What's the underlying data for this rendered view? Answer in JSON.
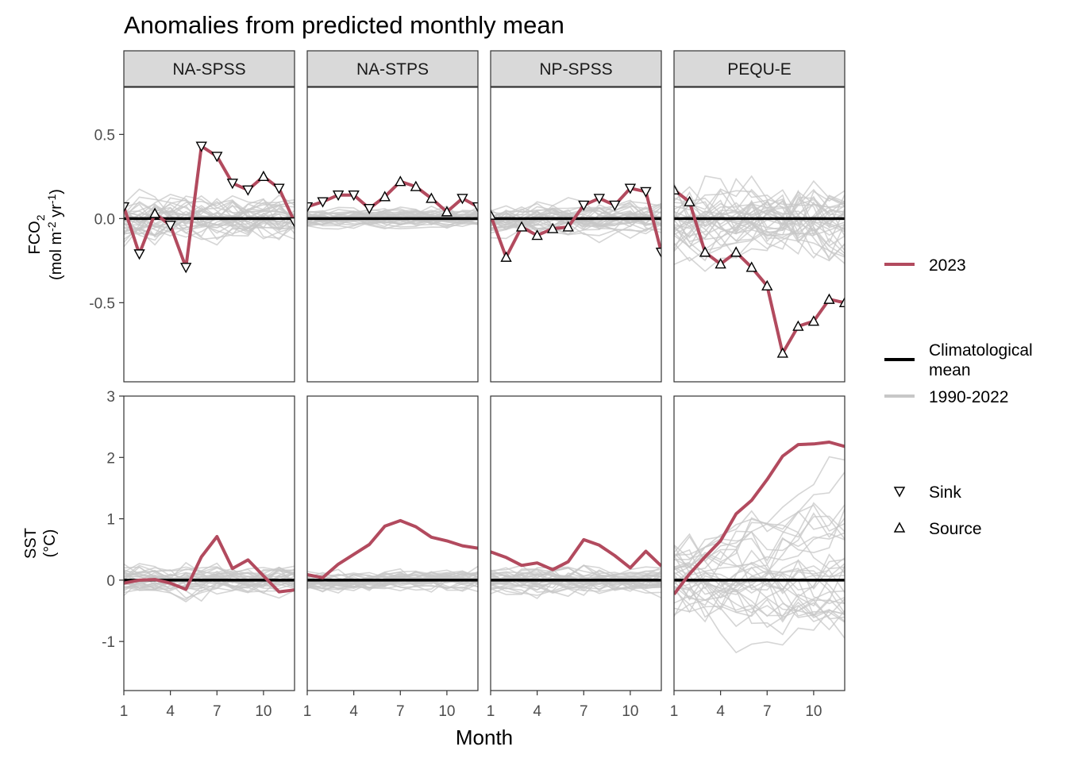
{
  "chart_data": {
    "type": "line",
    "title": "Anomalies from predicted monthly mean",
    "xlabel": "Month",
    "x": [
      1,
      2,
      3,
      4,
      5,
      6,
      7,
      8,
      9,
      10,
      11,
      12
    ],
    "x_ticks": [
      1,
      4,
      7,
      10
    ],
    "x_tick_labels": [
      "1",
      "4",
      "7",
      "10"
    ],
    "panels": [
      "NA-SPSS",
      "NA-STPS",
      "NP-SPSS",
      "PEQU-E"
    ],
    "rows": [
      {
        "key": "fco2",
        "ylabel_line1": "FCO",
        "ylabel_sub": "2",
        "ylabel_line2_a": "(mol m",
        "ylabel_line2_sup1": "-2",
        "ylabel_line2_b": " yr",
        "ylabel_line2_sup2": "-1",
        "ylabel_line2_c": ")",
        "ylim": [
          -0.97,
          0.78
        ],
        "y_ticks": [
          0.5,
          0.0,
          -0.5
        ],
        "y_tick_labels": [
          "0.5",
          "0.0",
          "-0.5"
        ],
        "series_2023": [
          [
            0.07,
            -0.21,
            0.03,
            -0.04,
            -0.29,
            0.43,
            0.37,
            0.21,
            0.17,
            0.25,
            0.18,
            -0.02
          ],
          [
            0.07,
            0.1,
            0.14,
            0.14,
            0.06,
            0.13,
            0.22,
            0.19,
            0.12,
            0.04,
            0.12,
            0.07
          ],
          [
            0.02,
            -0.23,
            -0.05,
            -0.1,
            -0.06,
            -0.05,
            0.08,
            0.12,
            0.08,
            0.18,
            0.16,
            -0.2
          ],
          [
            0.17,
            0.1,
            -0.2,
            -0.27,
            -0.2,
            -0.29,
            -0.4,
            -0.8,
            -0.64,
            -0.61,
            -0.48,
            -0.5
          ]
        ],
        "marker_type_2023": [
          [
            "Sink",
            "Sink",
            "Source",
            "Sink",
            "Sink",
            "Sink",
            "Sink",
            "Sink",
            "Sink",
            "Source",
            "Sink",
            "Sink"
          ],
          [
            "Sink",
            "Sink",
            "Sink",
            "Sink",
            "Sink",
            "Source",
            "Source",
            "Source",
            "Source",
            "Source",
            "Sink",
            "Sink"
          ],
          [
            "Source",
            "Source",
            "Source",
            "Source",
            "Source",
            "Source",
            "Sink",
            "Sink",
            "Sink",
            "Sink",
            "Sink",
            "Sink"
          ],
          [
            "Source",
            "Source",
            "Source",
            "Source",
            "Source",
            "Source",
            "Source",
            "Source",
            "Source",
            "Source",
            "Source",
            "Source"
          ]
        ],
        "hist_spread": [
          0.13,
          0.06,
          0.1,
          0.22
        ]
      },
      {
        "key": "sst",
        "ylabel_line1": "SST",
        "ylabel_line2": "(°C)",
        "ylim": [
          -1.8,
          3.0
        ],
        "y_ticks": [
          3,
          2,
          1,
          0,
          -1
        ],
        "y_tick_labels": [
          "3",
          "2",
          "1",
          "0",
          "-1"
        ],
        "series_2023": [
          [
            -0.05,
            0.0,
            0.01,
            -0.05,
            -0.15,
            0.38,
            0.71,
            0.19,
            0.33,
            0.07,
            -0.19,
            -0.16
          ],
          [
            0.09,
            0.04,
            0.26,
            0.42,
            0.58,
            0.88,
            0.97,
            0.87,
            0.7,
            0.64,
            0.56,
            0.52
          ],
          [
            0.46,
            0.37,
            0.24,
            0.28,
            0.17,
            0.3,
            0.66,
            0.57,
            0.4,
            0.2,
            0.47,
            0.23
          ],
          [
            -0.23,
            0.1,
            0.38,
            0.64,
            1.08,
            1.3,
            1.64,
            2.02,
            2.21,
            2.22,
            2.25,
            2.18
          ]
        ],
        "hist_spread": [
          0.25,
          0.18,
          0.24,
          0.55
        ]
      }
    ],
    "legend": {
      "year_label": "2023",
      "clim_label_1": "Climatological",
      "clim_label_2": "mean",
      "hist_label": "1990-2022",
      "sink_label": "Sink",
      "source_label": "Source"
    },
    "colors": {
      "year_2023": "#b24a5e",
      "climatology": "#000000",
      "history": "#c7c7c7",
      "strip_fill": "#d9d9d9"
    },
    "grid": false
  }
}
